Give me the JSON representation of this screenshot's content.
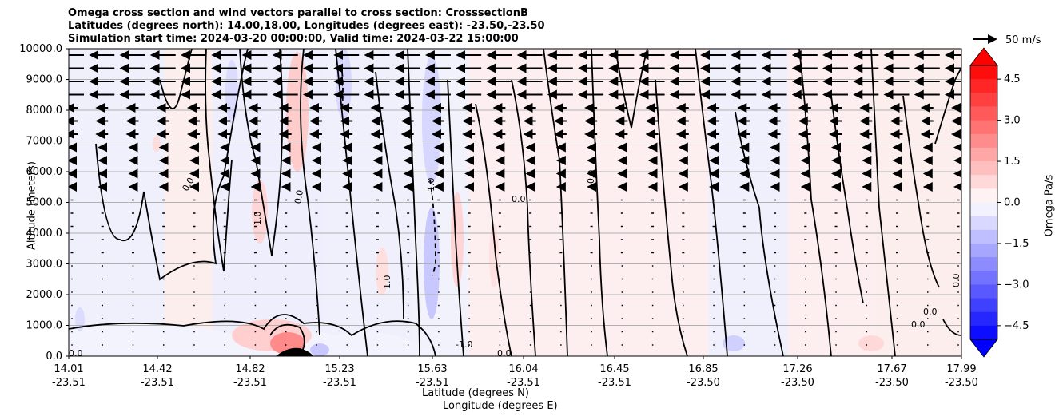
{
  "chart_data": {
    "type": "contour",
    "title_lines": [
      "Omega cross section and wind vectors parallel to cross section: CrosssectionB",
      "Latitudes (degrees north): 14.00,18.00, Longitudes (degrees east): -23.50,-23.50",
      "Simulation start time: 2024-03-20 00:00:00, Valid time: 2024-03-22 15:00:00"
    ],
    "ylabel": "Altitude (meters)",
    "xlabel_lat": "Latitude (degrees N)",
    "xlabel_lon": "Longitude (degrees E)",
    "ylim": [
      0,
      10000
    ],
    "yticks": [
      "0.0",
      "1000.0",
      "2000.0",
      "3000.0",
      "4000.0",
      "5000.0",
      "6000.0",
      "7000.0",
      "8000.0",
      "9000.0",
      "10000.0"
    ],
    "xticks": [
      {
        "lat": "14.01",
        "lon": "-23.51"
      },
      {
        "lat": "14.42",
        "lon": "-23.51"
      },
      {
        "lat": "14.82",
        "lon": "-23.51"
      },
      {
        "lat": "15.23",
        "lon": "-23.51"
      },
      {
        "lat": "15.63",
        "lon": "-23.51"
      },
      {
        "lat": "16.04",
        "lon": "-23.51"
      },
      {
        "lat": "16.45",
        "lon": "-23.51"
      },
      {
        "lat": "16.85",
        "lon": "-23.50"
      },
      {
        "lat": "17.26",
        "lon": "-23.50"
      },
      {
        "lat": "17.67",
        "lon": "-23.50"
      },
      {
        "lat": "17.99",
        "lon": "-23.50"
      }
    ],
    "grid": "horizontal",
    "colorbar": {
      "label": "Omega Pa/s",
      "ticks": [
        "4.5",
        "3.0",
        "1.5",
        "0.0",
        "−1.5",
        "−3.0",
        "−4.5"
      ],
      "range": [
        -5,
        5
      ],
      "colormap": "bwr"
    },
    "quiver_reference": "50 m/s",
    "contour_labels": [
      "0.0",
      "-1.0",
      "1.0"
    ],
    "colors": {
      "positive": "#ff0000",
      "negative": "#0000ff",
      "contour": "#000000",
      "terrain": "#000000"
    }
  }
}
